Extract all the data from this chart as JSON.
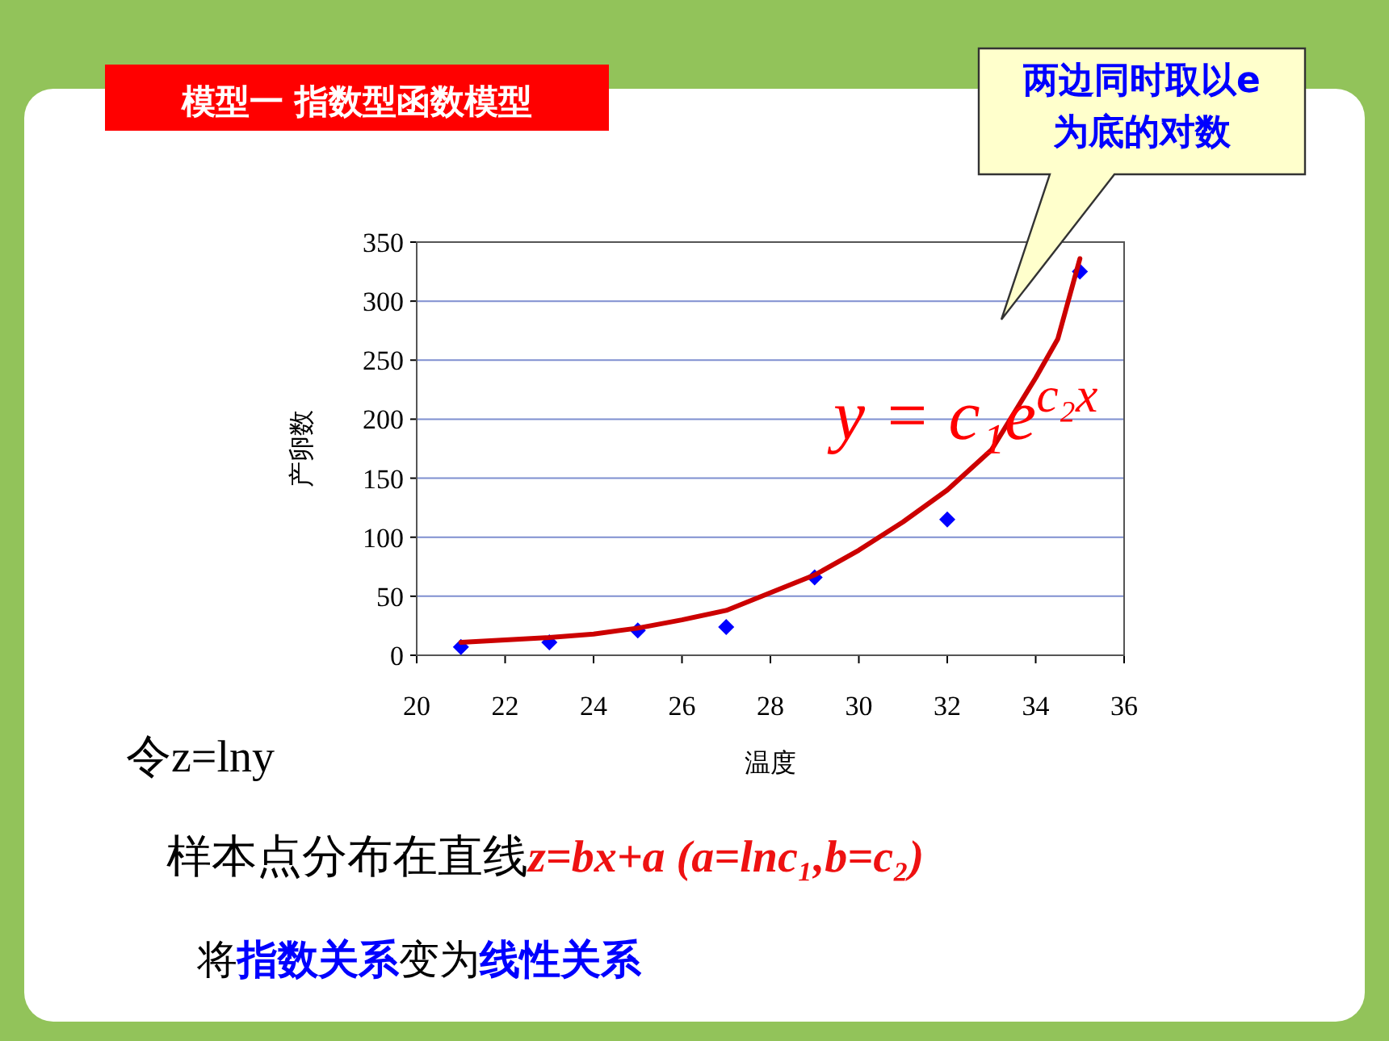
{
  "chart_data": {
    "type": "scatter",
    "title": "模型一 指数型函数模型",
    "xlabel": "温度",
    "ylabel": "产卵数",
    "xlim": [
      20,
      36
    ],
    "xticks": [
      20,
      22,
      24,
      26,
      28,
      30,
      32,
      34,
      36
    ],
    "ylim": [
      0,
      350
    ],
    "yticks": [
      0,
      50,
      100,
      150,
      200,
      250,
      300,
      350
    ],
    "grid": "y",
    "series": [
      {
        "color": "#0000ff",
        "marker": "diamond",
        "x": [
          21,
          23,
          25,
          27,
          29,
          32,
          35
        ],
        "values": [
          7,
          11,
          21,
          24,
          66,
          115,
          325
        ]
      },
      {
        "type": "line",
        "color": "#cc0000",
        "marker": "none",
        "x": [
          21,
          22,
          23,
          24,
          25,
          26,
          27,
          28,
          29,
          30,
          31,
          32,
          33,
          34,
          34.5,
          35
        ],
        "values": [
          11,
          13,
          15,
          18,
          23,
          30,
          38,
          53,
          68,
          89,
          113,
          140,
          174,
          235,
          268,
          336
        ]
      }
    ],
    "annotations": [
      "两边同时取以e为底的对数",
      "y = c₁e$^{c₂x}$",
      "令z=lny",
      "样本点分布在直线 ",
      "z=bx+a (a=lnc₁,b=c₂)",
      "将",
      "指数关系",
      "变为",
      "线性关系"
    ]
  }
}
